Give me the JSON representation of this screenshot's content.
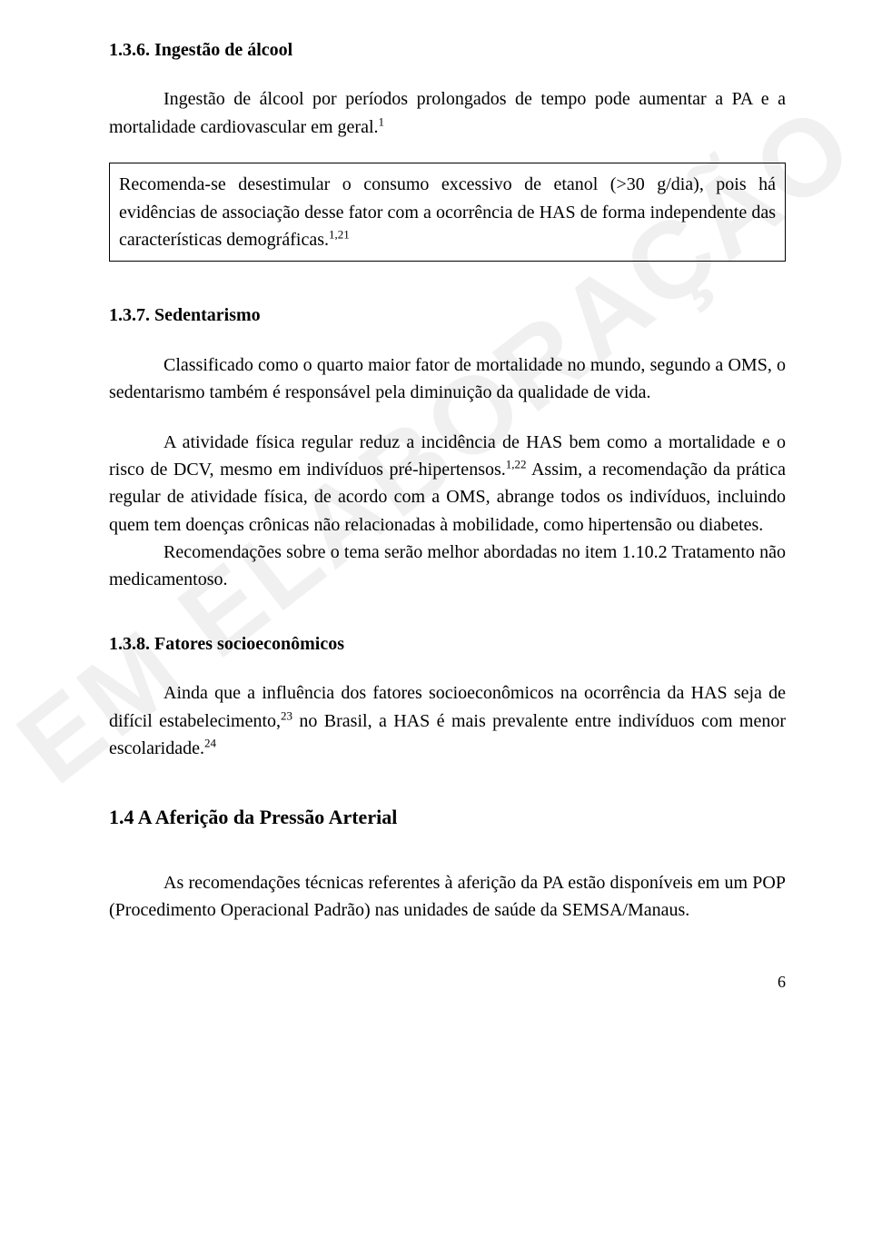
{
  "watermark": "EM ELABORAÇÃO",
  "section136": {
    "heading": "1.3.6. Ingestão de álcool",
    "para1": "Ingestão de álcool por períodos prolongados de tempo pode aumentar a PA e a mortalidade cardiovascular em geral.",
    "sup1": "1",
    "box_text": "Recomenda-se desestimular o consumo excessivo de etanol (>30 g/dia), pois há evidências de associação desse fator com a ocorrência de HAS de forma independente das características demográficas.",
    "box_sup": "1,21"
  },
  "section137": {
    "heading": "1.3.7. Sedentarismo",
    "para1": "Classificado como o quarto maior fator de mortalidade no mundo, segundo a OMS, o sedentarismo também é responsável pela diminuição da qualidade de vida.",
    "para2a": "A atividade física regular reduz a incidência de HAS bem como a mortalidade e o risco de DCV, mesmo em indivíduos pré-hipertensos.",
    "para2_sup": "1,22",
    "para2b": " Assim, a recomendação da prática regular de atividade física, de acordo com a OMS, abrange todos os indivíduos, incluindo quem tem doenças crônicas não relacionadas à mobilidade, como hipertensão ou diabetes.",
    "para3": "Recomendações sobre o tema serão melhor abordadas no item  1.10.2 Tratamento não medicamentoso."
  },
  "section138": {
    "heading": "1.3.8. Fatores socioeconômicos",
    "para1a": "Ainda que a influência dos fatores socioeconômicos na ocorrência da HAS seja de difícil estabelecimento,",
    "para1_sup1": "23",
    "para1b": " no Brasil, a HAS é mais prevalente entre indivíduos com menor escolaridade.",
    "para1_sup2": "24"
  },
  "section14": {
    "heading": "1.4  A Aferição da Pressão Arterial",
    "para1": "As recomendações técnicas referentes à aferição da PA estão disponíveis em um POP (Procedimento Operacional Padrão) nas unidades de saúde da SEMSA/Manaus."
  },
  "page_number": "6"
}
